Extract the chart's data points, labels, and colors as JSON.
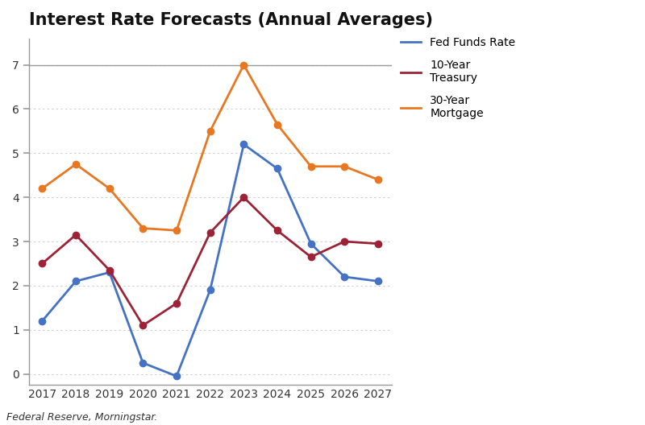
{
  "title": "Interest Rate Forecasts (Annual Averages)",
  "years": [
    2017,
    2018,
    2019,
    2020,
    2021,
    2022,
    2023,
    2024,
    2025,
    2026,
    2027
  ],
  "fed_funds": [
    1.2,
    2.1,
    2.3,
    0.25,
    -0.05,
    1.9,
    5.2,
    4.65,
    2.95,
    2.2,
    2.1
  ],
  "treasury_10": [
    2.5,
    3.15,
    2.35,
    1.1,
    1.6,
    3.2,
    4.0,
    3.25,
    2.65,
    3.0,
    2.95
  ],
  "mortgage_30": [
    4.2,
    4.75,
    4.2,
    3.3,
    3.25,
    5.5,
    7.0,
    5.65,
    4.7,
    4.7,
    4.4
  ],
  "fed_color": "#4472c4",
  "treasury_color": "#9b2335",
  "mortgage_color": "#e87722",
  "ylim": [
    -0.25,
    7.6
  ],
  "yticks": [
    0,
    1,
    2,
    3,
    4,
    5,
    6,
    7
  ],
  "footnote": "Federal Reserve, Morningstar.",
  "legend_labels": [
    "Fed Funds Rate",
    "10-Year\nTreasury",
    "30-Year\nMortgage"
  ],
  "background_color": "#ffffff",
  "plot_bg": "#ffffff",
  "grid_color": "#cccccc",
  "spine_color": "#999999",
  "tick_color": "#555555",
  "title_fontsize": 15,
  "axis_fontsize": 10,
  "footnote_fontsize": 9
}
